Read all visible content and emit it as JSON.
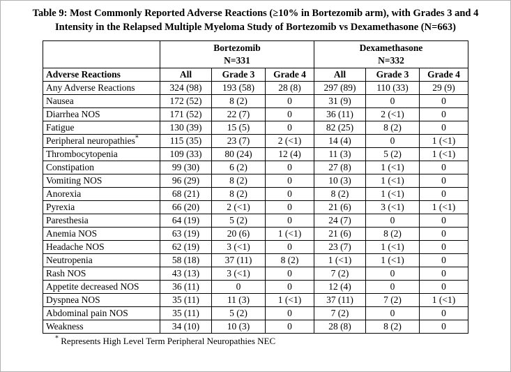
{
  "title": "Table 9: Most Commonly Reported Adverse Reactions (≥10% in Bortezomib arm), with Grades 3 and 4 Intensity in the Relapsed Multiple Myeloma Study of Bortezomib vs Dexamethasone (N=663)",
  "table": {
    "groups": [
      {
        "name": "Bortezomib",
        "n": "N=331"
      },
      {
        "name": "Dexamethasone",
        "n": "N=332"
      }
    ],
    "columns": {
      "reaction": "Adverse Reactions",
      "sub": [
        "All",
        "Grade 3",
        "Grade 4",
        "All",
        "Grade 3",
        "Grade 4"
      ]
    },
    "rows": [
      {
        "reaction": "Any Adverse Reactions",
        "values": [
          "324 (98)",
          "193 (58)",
          "28 (8)",
          "297 (89)",
          "110 (33)",
          "29 (9)"
        ]
      },
      {
        "reaction": "Nausea",
        "values": [
          "172 (52)",
          "8 (2)",
          "0",
          "31 (9)",
          "0",
          "0"
        ]
      },
      {
        "reaction": "Diarrhea NOS",
        "values": [
          "171 (52)",
          "22 (7)",
          "0",
          "36 (11)",
          "2 (<1)",
          "0"
        ]
      },
      {
        "reaction": "Fatigue",
        "values": [
          "130 (39)",
          "15 (5)",
          "0",
          "82 (25)",
          "8 (2)",
          "0"
        ]
      },
      {
        "reaction": "Peripheral neuropathies*",
        "values": [
          "115 (35)",
          "23 (7)",
          "2 (<1)",
          "14 (4)",
          "0",
          "1 (<1)"
        ]
      },
      {
        "reaction": "Thrombocytopenia",
        "values": [
          "109 (33)",
          "80 (24)",
          "12 (4)",
          "11 (3)",
          "5 (2)",
          "1 (<1)"
        ]
      },
      {
        "reaction": "Constipation",
        "values": [
          "99 (30)",
          "6 (2)",
          "0",
          "27 (8)",
          "1 (<1)",
          "0"
        ]
      },
      {
        "reaction": "Vomiting NOS",
        "values": [
          "96 (29)",
          "8 (2)",
          "0",
          "10 (3)",
          "1 (<1)",
          "0"
        ]
      },
      {
        "reaction": "Anorexia",
        "values": [
          "68 (21)",
          "8 (2)",
          "0",
          "8 (2)",
          "1 (<1)",
          "0"
        ]
      },
      {
        "reaction": "Pyrexia",
        "values": [
          "66 (20)",
          "2 (<1)",
          "0",
          "21 (6)",
          "3 (<1)",
          "1 (<1)"
        ]
      },
      {
        "reaction": "Paresthesia",
        "values": [
          "64 (19)",
          "5 (2)",
          "0",
          "24 (7)",
          "0",
          "0"
        ]
      },
      {
        "reaction": "Anemia NOS",
        "values": [
          "63 (19)",
          "20 (6)",
          "1 (<1)",
          "21 (6)",
          "8 (2)",
          "0"
        ]
      },
      {
        "reaction": "Headache NOS",
        "values": [
          "62 (19)",
          "3 (<1)",
          "0",
          "23 (7)",
          "1 (<1)",
          "0"
        ]
      },
      {
        "reaction": "Neutropenia",
        "values": [
          "58 (18)",
          "37 (11)",
          "8 (2)",
          "1 (<1)",
          "1 (<1)",
          "0"
        ]
      },
      {
        "reaction": "Rash NOS",
        "values": [
          "43 (13)",
          "3 (<1)",
          "0",
          "7 (2)",
          "0",
          "0"
        ]
      },
      {
        "reaction": "Appetite decreased NOS",
        "values": [
          "36 (11)",
          "0",
          "0",
          "12 (4)",
          "0",
          "0"
        ]
      },
      {
        "reaction": "Dyspnea NOS",
        "values": [
          "35 (11)",
          "11 (3)",
          "1 (<1)",
          "37 (11)",
          "7 (2)",
          "1 (<1)"
        ]
      },
      {
        "reaction": "Abdominal pain NOS",
        "values": [
          "35 (11)",
          "5 (2)",
          "0",
          "7 (2)",
          "0",
          "0"
        ]
      },
      {
        "reaction": "Weakness",
        "values": [
          "34 (10)",
          "10 (3)",
          "0",
          "28 (8)",
          "8 (2)",
          "0"
        ]
      }
    ]
  },
  "footnote": {
    "symbol": "*",
    "text": "Represents High Level Term Peripheral Neuropathies NEC"
  }
}
